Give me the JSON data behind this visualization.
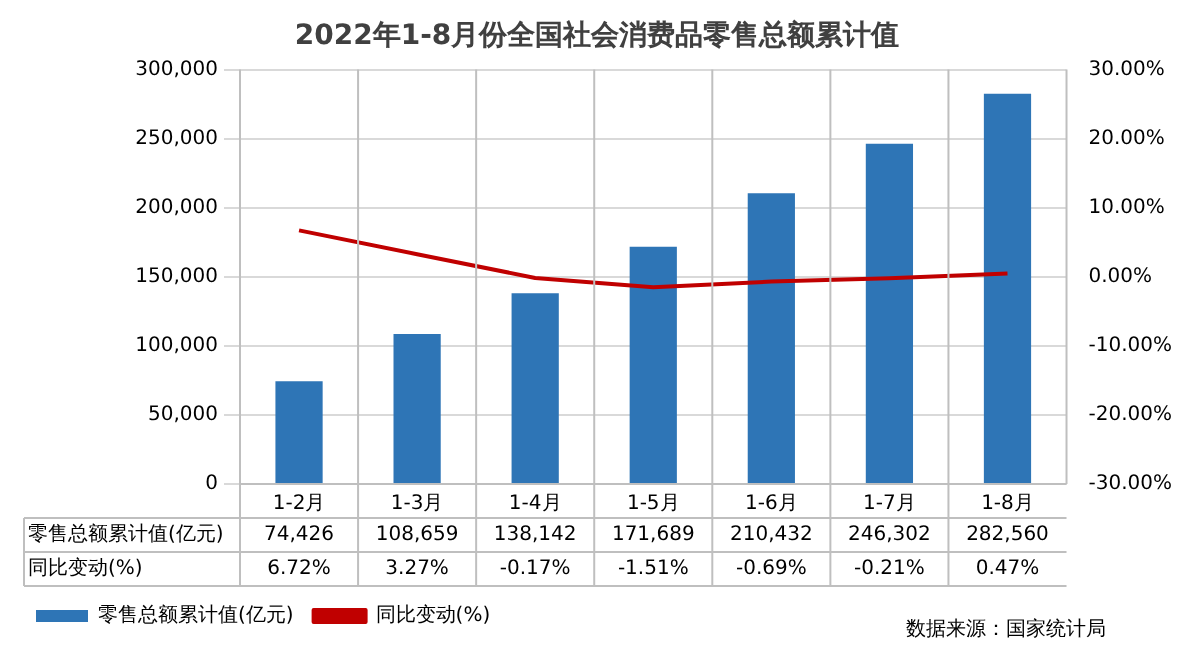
{
  "chart_data": {
    "type": "bar",
    "title": "2022年1-8月份全国社会消费品零售总额累计值",
    "categories": [
      "1-2月",
      "1-3月",
      "1-4月",
      "1-5月",
      "1-6月",
      "1-7月",
      "1-8月"
    ],
    "series": [
      {
        "name": "零售总额累计值(亿元)",
        "color": "#2e75b6",
        "values": [
          74426,
          108659,
          138142,
          171689,
          210432,
          246302,
          282560
        ],
        "value_labels": [
          "74,426",
          "108,659",
          "138,142",
          "171,689",
          "210,432",
          "246,302",
          "282,560"
        ]
      },
      {
        "name": "同比变动(%)",
        "type": "line",
        "axis": "y2",
        "color": "#c00000",
        "values": [
          6.72,
          3.27,
          -0.17,
          -1.51,
          -0.69,
          -0.21,
          0.47
        ],
        "value_labels": [
          "6.72%",
          "3.27%",
          "-0.17%",
          "-1.51%",
          "-0.69%",
          "-0.21%",
          "0.47%"
        ],
        "marker": "none"
      }
    ],
    "ylim": [
      0,
      300000
    ],
    "yticks": [
      0,
      {
        "value": 50000,
        "label": "50,000"
      },
      {
        "value": 100000,
        "label": "100,000"
      },
      {
        "value": 150000,
        "label": "150,000"
      },
      {
        "value": 200000,
        "label": "200,000"
      },
      {
        "value": 250000,
        "label": "250,000"
      },
      {
        "value": 300000,
        "label": "300,000"
      }
    ],
    "y2lim": [
      -30,
      30
    ],
    "y2ticks": [
      {
        "value": -30,
        "label": "-30.00%"
      },
      {
        "value": -20,
        "label": "-20.00%"
      },
      {
        "value": -10,
        "label": "-10.00%"
      },
      {
        "value": 0,
        "label": "0.00%"
      },
      {
        "value": 10,
        "label": "10.00%"
      },
      {
        "value": 20,
        "label": "20.00%"
      },
      {
        "value": 30,
        "label": "30.00%"
      }
    ],
    "grid": "y",
    "legend": "bottom left",
    "annotations": [
      "数据来源：国家统计局"
    ]
  }
}
